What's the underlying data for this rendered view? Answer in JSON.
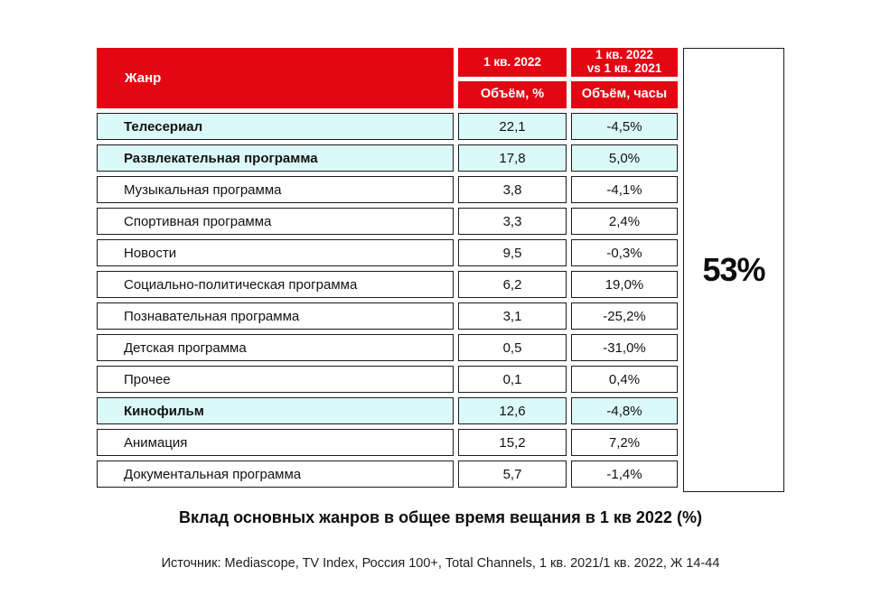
{
  "table": {
    "header": {
      "genre": "Жанр",
      "col_volume": {
        "period": "1 кв. 2022",
        "metric": "Объём, %"
      },
      "col_change": {
        "period_line1": "1 кв. 2022",
        "period_line2": "vs 1 кв. 2021",
        "metric": "Объём, часы"
      }
    },
    "rows": [
      {
        "genre": "Телесериал",
        "volume": "22,1",
        "change": "-4,5%",
        "highlighted": true
      },
      {
        "genre": "Развлекательная программа",
        "volume": "17,8",
        "change": "5,0%",
        "highlighted": true
      },
      {
        "genre": "Музыкальная программа",
        "volume": "3,8",
        "change": "-4,1%",
        "highlighted": false
      },
      {
        "genre": "Спортивная программа",
        "volume": "3,3",
        "change": "2,4%",
        "highlighted": false
      },
      {
        "genre": "Новости",
        "volume": "9,5",
        "change": "-0,3%",
        "highlighted": false
      },
      {
        "genre": "Социально-политическая программа",
        "volume": "6,2",
        "change": "19,0%",
        "highlighted": false
      },
      {
        "genre": "Познавательная программа",
        "volume": "3,1",
        "change": "-25,2%",
        "highlighted": false
      },
      {
        "genre": "Детская программа",
        "volume": "0,5",
        "change": "-31,0%",
        "highlighted": false
      },
      {
        "genre": "Прочее",
        "volume": "0,1",
        "change": "0,4%",
        "highlighted": false
      },
      {
        "genre": "Кинофильм",
        "volume": "12,6",
        "change": "-4,8%",
        "highlighted": true
      },
      {
        "genre": "Анимация",
        "volume": "15,2",
        "change": "7,2%",
        "highlighted": false
      },
      {
        "genre": "Документальная программа",
        "volume": "5,7",
        "change": "-1,4%",
        "highlighted": false
      }
    ]
  },
  "summary": {
    "share_label": "53%"
  },
  "caption": "Вклад основных жанров в общее время вещания в 1 кв 2022 (%)",
  "source": "Источник: Mediascope, TV Index, Россия 100+, Total Channels, 1 кв. 2021/1 кв. 2022, Ж 14-44",
  "colors": {
    "header_red": "#E30613",
    "highlight_cyan": "#DBF9F8",
    "border": "#1b1b1b",
    "text": "#121212"
  },
  "chart_data": {
    "type": "table",
    "title": "Вклад основных жанров в общее время вещания в 1 кв 2022 (%)",
    "columns": [
      "Жанр",
      "1 кв. 2022 — Объём, %",
      "1 кв. 2022 vs 1 кв. 2021 — Объём, часы"
    ],
    "rows": [
      [
        "Телесериал",
        22.1,
        -4.5
      ],
      [
        "Развлекательная программа",
        17.8,
        5.0
      ],
      [
        "Музыкальная программа",
        3.8,
        -4.1
      ],
      [
        "Спортивная программа",
        3.3,
        2.4
      ],
      [
        "Новости",
        9.5,
        -0.3
      ],
      [
        "Социально-политическая программа",
        6.2,
        19.0
      ],
      [
        "Познавательная программа",
        3.1,
        -25.2
      ],
      [
        "Детская программа",
        0.5,
        -31.0
      ],
      [
        "Прочее",
        0.1,
        0.4
      ],
      [
        "Кинофильм",
        12.6,
        -4.8
      ],
      [
        "Анимация",
        15.2,
        7.2
      ],
      [
        "Документальная программа",
        5.7,
        -1.4
      ]
    ],
    "highlighted_rows": [
      "Телесериал",
      "Развлекательная программа",
      "Кинофильм"
    ],
    "summary_annotation": "53%",
    "units": {
      "volume": "% of total broadcast time",
      "change": "% change in hours vs 1 кв. 2021"
    }
  }
}
